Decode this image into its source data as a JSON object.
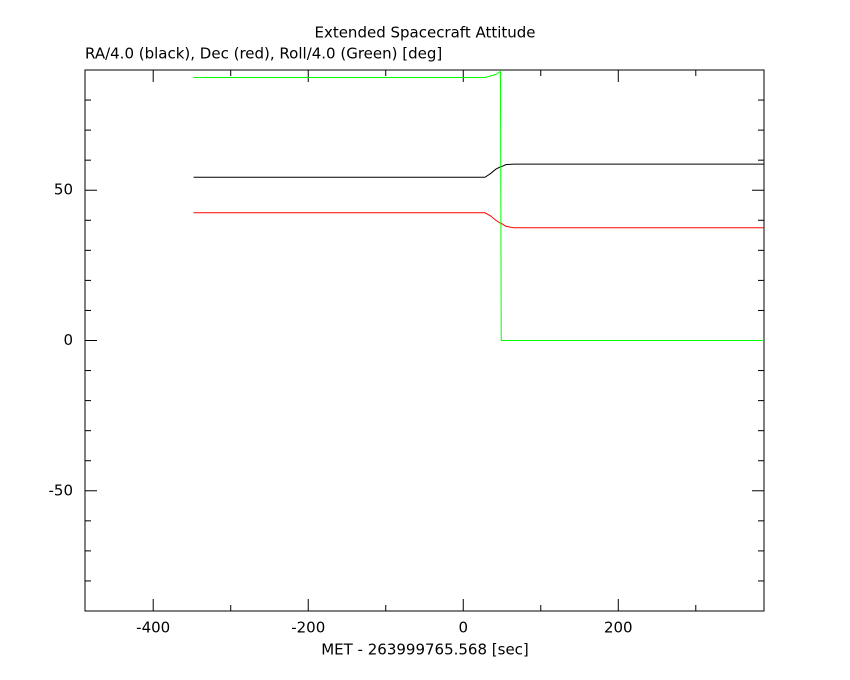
{
  "chart_data": {
    "type": "line",
    "title": "Extended Spacecraft Attitude",
    "subtitle": "RA/4.0 (black), Dec (red), Roll/4.0 (Green) [deg]",
    "x_label": "MET - 263999765.568 [sec]",
    "x": [
      -348,
      28,
      35,
      42,
      48,
      49,
      55,
      65,
      388
    ],
    "series": [
      {
        "name": "RA/4.0",
        "color": "#000000",
        "values": [
          54.3,
          54.3,
          55.5,
          57,
          57.8,
          57.8,
          58.5,
          58.7,
          58.7
        ]
      },
      {
        "name": "Dec",
        "color": "#ff0000",
        "values": [
          42.5,
          42.5,
          41.5,
          40,
          39,
          39,
          38,
          37.5,
          37.5
        ]
      },
      {
        "name": "Roll/4.0",
        "color": "#00ff00",
        "values": [
          87.5,
          87.5,
          88,
          88.5,
          89.5,
          0,
          0,
          0,
          0
        ]
      }
    ],
    "xlim": [
      -488,
      388
    ],
    "ylim": [
      -90,
      90
    ],
    "xticks": [
      -400,
      -200,
      0,
      200
    ],
    "yticks": [
      -50,
      0,
      50
    ],
    "xticks_minor": [
      -300,
      -100,
      100,
      300
    ],
    "yticks_minor": [
      -80,
      -70,
      -60,
      -40,
      -30,
      -20,
      -10,
      10,
      20,
      30,
      40,
      60,
      70,
      80
    ]
  }
}
